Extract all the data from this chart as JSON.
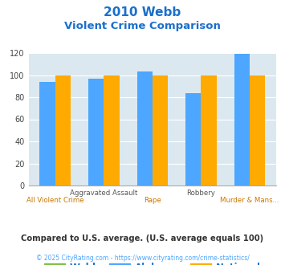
{
  "title_line1": "2010 Webb",
  "title_line2": "Violent Crime Comparison",
  "categories_top": [
    "",
    "Aggravated Assault",
    "",
    "Robbery",
    ""
  ],
  "categories_bot": [
    "All Violent Crime",
    "",
    "Rape",
    "",
    "Murder & Mans..."
  ],
  "alabama_values": [
    94,
    97,
    103,
    84,
    119
  ],
  "national_values": [
    100,
    100,
    100,
    100,
    100
  ],
  "webb_color": "#7bc043",
  "alabama_color": "#4da6ff",
  "national_color": "#ffaa00",
  "ylim": [
    0,
    120
  ],
  "yticks": [
    0,
    20,
    40,
    60,
    80,
    100,
    120
  ],
  "bg_color": "#dce8f0",
  "fig_bg": "#ffffff",
  "title_color": "#1a6fcc",
  "subtitle_color": "#1a6fcc",
  "xlabel_color_top": "#555555",
  "xlabel_color_bot": "#cc7700",
  "legend_label_color": "#1a6fcc",
  "footer_text": "Compared to U.S. average. (U.S. average equals 100)",
  "copyright_text": "© 2025 CityRating.com - https://www.cityrating.com/crime-statistics/",
  "footer_color": "#333333",
  "copyright_color": "#4da6ff",
  "bar_width": 0.32
}
